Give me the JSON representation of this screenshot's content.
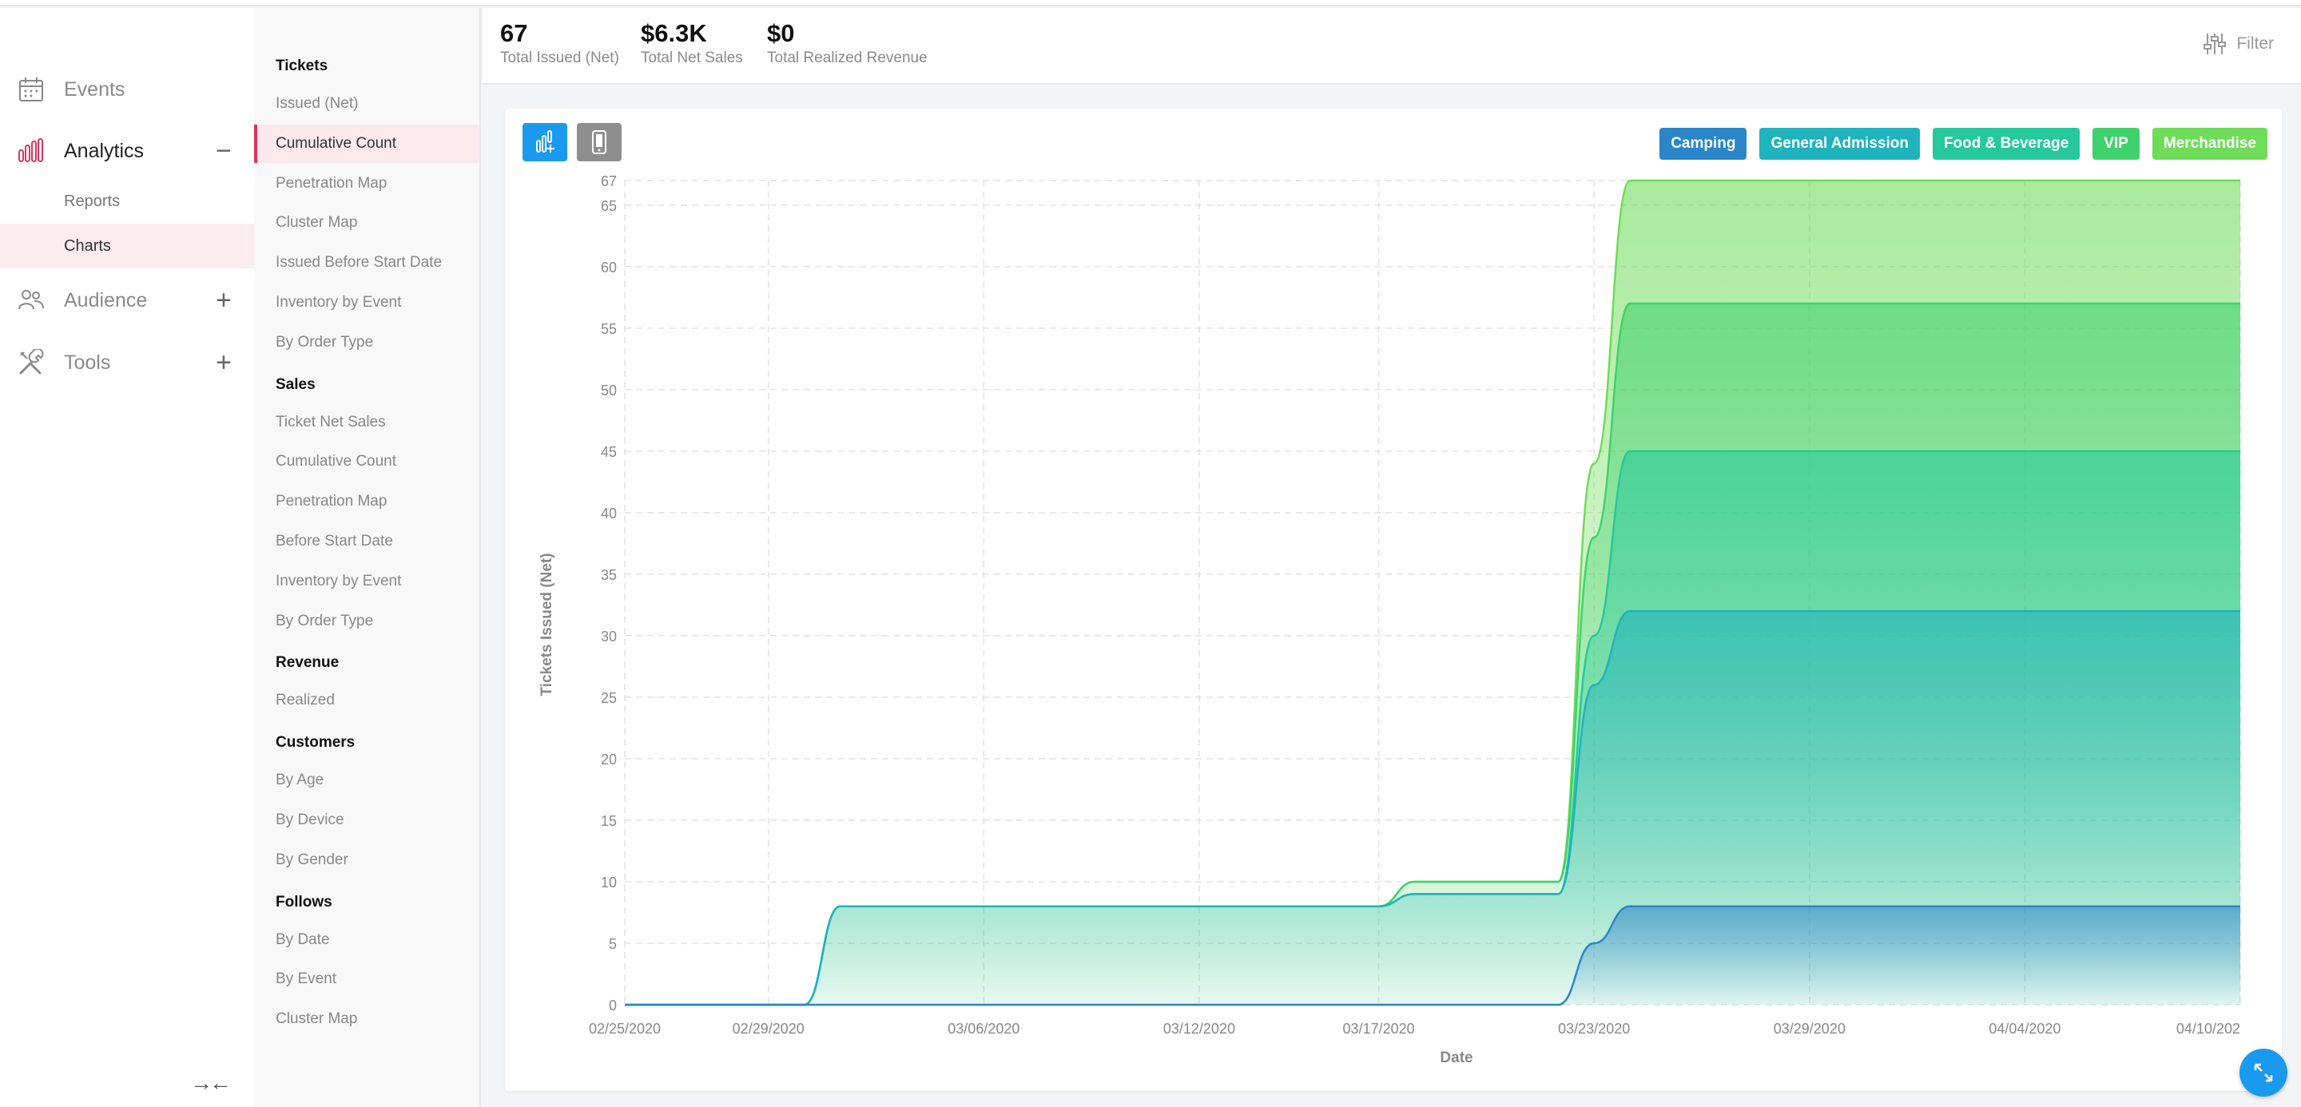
{
  "nav": {
    "items": [
      {
        "label": "Events",
        "icon": "calendar-icon",
        "toggle": ""
      },
      {
        "label": "Analytics",
        "icon": "bar-chart-icon",
        "toggle": "−"
      },
      {
        "label": "Audience",
        "icon": "users-icon",
        "toggle": "+"
      },
      {
        "label": "Tools",
        "icon": "tools-icon",
        "toggle": "+"
      }
    ],
    "sub_items": [
      {
        "label": "Reports"
      },
      {
        "label": "Charts"
      }
    ],
    "collapse_icon": "collapse-arrows-icon"
  },
  "menu": {
    "sections": [
      {
        "title": "Tickets",
        "items": [
          "Issued (Net)",
          "Cumulative Count",
          "Penetration Map",
          "Cluster Map",
          "Issued Before Start Date",
          "Inventory by Event",
          "By Order Type"
        ]
      },
      {
        "title": "Sales",
        "items": [
          "Ticket Net Sales",
          "Cumulative Count",
          "Penetration Map",
          "Before Start Date",
          "Inventory by Event",
          "By Order Type"
        ]
      },
      {
        "title": "Revenue",
        "items": [
          "Realized"
        ]
      },
      {
        "title": "Customers",
        "items": [
          "By Age",
          "By Device",
          "By Gender"
        ]
      },
      {
        "title": "Follows",
        "items": [
          "By Date",
          "By Event",
          "Cluster Map"
        ]
      }
    ],
    "active": "Cumulative Count"
  },
  "stats": [
    {
      "value": "67",
      "label": "Total Issued (Net)"
    },
    {
      "value": "$6.3K",
      "label": "Total Net Sales"
    },
    {
      "value": "$0",
      "label": "Total Realized Revenue"
    }
  ],
  "filter": {
    "label": "Filter",
    "icon": "sliders-icon"
  },
  "view_buttons": [
    {
      "icon": "bar-chart-add-icon",
      "color": "#1a9aef"
    },
    {
      "icon": "mobile-device-icon",
      "color": "#8e8e8e"
    }
  ],
  "fab_icon": "expand-icon",
  "chart_data": {
    "type": "area",
    "stacked": true,
    "xlabel": "Date",
    "ylabel": "Tickets Issued (Net)",
    "ylim": [
      0,
      67
    ],
    "y_ticks": [
      0,
      5,
      10,
      15,
      20,
      25,
      30,
      35,
      40,
      45,
      50,
      55,
      60,
      65,
      67
    ],
    "x_ticks": [
      "02/25/2020",
      "02/29/2020",
      "03/06/2020",
      "03/12/2020",
      "03/17/2020",
      "03/23/2020",
      "03/29/2020",
      "04/04/2020",
      "04/10/202"
    ],
    "grid": true,
    "legend_placement": "top-right",
    "x": [
      "2020-02-25",
      "2020-03-01",
      "2020-03-02",
      "2020-03-17",
      "2020-03-18",
      "2020-03-22",
      "2020-03-23",
      "2020-03-24",
      "2020-04-10"
    ],
    "series": [
      {
        "name": "Camping",
        "color": "#2a86c8",
        "values": [
          0,
          0,
          0,
          0,
          0,
          0,
          5,
          8,
          8
        ]
      },
      {
        "name": "General Admission",
        "color": "#1fb3bd",
        "values": [
          0,
          0,
          8,
          8,
          9,
          9,
          26,
          32,
          32
        ]
      },
      {
        "name": "Food & Beverage",
        "color": "#25c99a",
        "values": [
          0,
          0,
          8,
          8,
          9,
          9,
          30,
          45,
          45
        ]
      },
      {
        "name": "VIP",
        "color": "#3fd26c",
        "values": [
          0,
          0,
          8,
          8,
          10,
          10,
          38,
          57,
          57
        ]
      },
      {
        "name": "Merchandise",
        "color": "#6fdc5a",
        "values": [
          0,
          0,
          8,
          8,
          10,
          10,
          44,
          67,
          67
        ]
      }
    ]
  }
}
